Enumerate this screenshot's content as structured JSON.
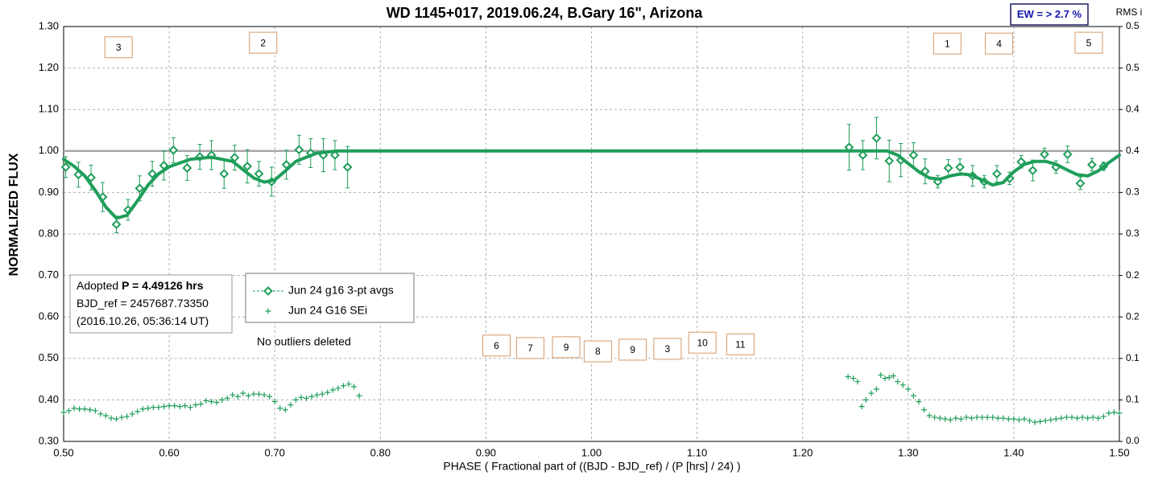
{
  "chart_data": {
    "type": "scatter",
    "title": "WD 1145+017, 2019.06.24, B.Gary 16\", Arizona",
    "x_label": "PHASE ( Fractional part of ((BJD - BJD_ref) / (P [hrs] / 24) )",
    "y_label": "NORMALIZED FLUX",
    "y2_label": "RMS i",
    "badge": "EW = > 2.7 %",
    "note": "No outliers deleted",
    "info_box": [
      [
        "Adopted",
        "P = 4.49126 hrs"
      ],
      [
        "BJD_ref = 2457687.73350"
      ],
      [
        "(2016.10.26, 05:36:14 UT)"
      ]
    ],
    "xlim": [
      0.5,
      1.5
    ],
    "ylim": [
      0.3,
      1.3
    ],
    "y2lim": [
      0,
      0.5
    ],
    "grid": true,
    "reference_line": 1,
    "xticks": [
      {
        "value": 0.5,
        "label": "0.50"
      },
      {
        "value": 0.6,
        "label": "0.60"
      },
      {
        "value": 0.7,
        "label": "0.70"
      },
      {
        "value": 0.8,
        "label": "0.80"
      },
      {
        "value": 0.9,
        "label": "0.90"
      },
      {
        "value": 1.0,
        "label": "1.00"
      },
      {
        "value": 1.1,
        "label": "1.10"
      },
      {
        "value": 1.2,
        "label": "1.20"
      },
      {
        "value": 1.3,
        "label": "1.30"
      },
      {
        "value": 1.4,
        "label": "1.40"
      },
      {
        "value": 1.5,
        "label": "1.50"
      }
    ],
    "yticks": [
      {
        "value": 0.3,
        "label": "0.30"
      },
      {
        "value": 0.4,
        "label": "0.40"
      },
      {
        "value": 0.5,
        "label": "0.50"
      },
      {
        "value": 0.6,
        "label": "0.60"
      },
      {
        "value": 0.7,
        "label": "0.70"
      },
      {
        "value": 0.8,
        "label": "0.80"
      },
      {
        "value": 0.9,
        "label": "0.90"
      },
      {
        "value": 1.0,
        "label": "1.00"
      },
      {
        "value": 1.1,
        "label": "1.10"
      },
      {
        "value": 1.2,
        "label": "1.20"
      },
      {
        "value": 1.3,
        "label": "1.30"
      }
    ],
    "y2ticks": [
      {
        "value": 0,
        "label": "0.0"
      },
      {
        "value": 0.05,
        "label": "0.1"
      },
      {
        "value": 0.1,
        "label": "0.1"
      },
      {
        "value": 0.15,
        "label": "0.2"
      },
      {
        "value": 0.2,
        "label": "0.2"
      },
      {
        "value": 0.25,
        "label": "0.3"
      },
      {
        "value": 0.3,
        "label": "0.3"
      },
      {
        "value": 0.35,
        "label": "0.4"
      },
      {
        "value": 0.4,
        "label": "0.4"
      },
      {
        "value": 0.45,
        "label": "0.5"
      },
      {
        "value": 0.5,
        "label": "0.5"
      }
    ],
    "annotations": [
      {
        "text": "3",
        "x": 0.552,
        "y": 1.25
      },
      {
        "text": "2",
        "x": 0.689,
        "y": 1.261
      },
      {
        "text": "1",
        "x": 1.337,
        "y": 1.259
      },
      {
        "text": "4",
        "x": 1.386,
        "y": 1.259
      },
      {
        "text": "5",
        "x": 1.471,
        "y": 1.261
      },
      {
        "text": "6",
        "x": 0.91,
        "y": 0.531
      },
      {
        "text": "7",
        "x": 0.942,
        "y": 0.525
      },
      {
        "text": "9",
        "x": 0.976,
        "y": 0.527
      },
      {
        "text": "8",
        "x": 1.006,
        "y": 0.517
      },
      {
        "text": "9",
        "x": 1.039,
        "y": 0.521
      },
      {
        "text": "3",
        "x": 1.072,
        "y": 0.523
      },
      {
        "text": "10",
        "x": 1.105,
        "y": 0.538
      },
      {
        "text": "11",
        "x": 1.141,
        "y": 0.534
      }
    ],
    "series": [
      {
        "name": "Jun 24 g16 3-pt avgs",
        "color": "#1f9e5a",
        "marker": "diamond",
        "x": [
          0.502,
          0.514,
          0.526,
          0.537,
          0.55,
          0.561,
          0.572,
          0.584,
          0.595,
          0.604,
          0.617,
          0.629,
          0.64,
          0.652,
          0.662,
          0.674,
          0.685,
          0.697,
          0.711,
          0.723,
          0.734,
          0.746,
          0.757,
          0.769,
          1.244,
          1.257,
          1.27,
          1.282,
          1.293,
          1.305,
          1.316,
          1.328,
          1.338,
          1.349,
          1.361,
          1.372,
          1.384,
          1.396,
          1.407,
          1.418,
          1.429,
          1.44,
          1.451,
          1.463,
          1.474,
          1.485
        ],
        "values": [
          0.961,
          0.943,
          0.936,
          0.889,
          0.823,
          0.858,
          0.91,
          0.945,
          0.965,
          1.002,
          0.959,
          0.986,
          0.99,
          0.945,
          0.984,
          0.963,
          0.945,
          0.926,
          0.967,
          1.003,
          0.995,
          0.99,
          0.99,
          0.961,
          1.009,
          0.99,
          1.031,
          0.976,
          0.978,
          0.99,
          0.951,
          0.926,
          0.959,
          0.961,
          0.94,
          0.926,
          0.945,
          0.934,
          0.974,
          0.953,
          0.992,
          0.961,
          0.992,
          0.922,
          0.967,
          0.963
        ],
        "errors": [
          0.025,
          0.03,
          0.03,
          0.035,
          0.02,
          0.025,
          0.03,
          0.03,
          0.035,
          0.03,
          0.03,
          0.03,
          0.035,
          0.035,
          0.03,
          0.04,
          0.03,
          0.035,
          0.035,
          0.035,
          0.035,
          0.04,
          0.035,
          0.05,
          0.055,
          0.035,
          0.05,
          0.05,
          0.04,
          0.03,
          0.03,
          0.015,
          0.02,
          0.02,
          0.025,
          0.015,
          0.02,
          0.015,
          0.015,
          0.025,
          0.015,
          0.015,
          0.02,
          0.015,
          0.015,
          0.01
        ]
      },
      {
        "name": "Jun 24 G16 SEi",
        "color": "#1f9e5a",
        "marker": "plus",
        "axis": "y2",
        "x": [
          0.5,
          0.505,
          0.51,
          0.515,
          0.52,
          0.525,
          0.53,
          0.535,
          0.54,
          0.545,
          0.55,
          0.555,
          0.56,
          0.565,
          0.57,
          0.575,
          0.58,
          0.585,
          0.59,
          0.595,
          0.6,
          0.605,
          0.61,
          0.615,
          0.62,
          0.625,
          0.63,
          0.635,
          0.64,
          0.645,
          0.65,
          0.655,
          0.66,
          0.665,
          0.67,
          0.675,
          0.68,
          0.685,
          0.69,
          0.695,
          0.7,
          0.705,
          0.71,
          0.715,
          0.72,
          0.725,
          0.73,
          0.735,
          0.74,
          0.745,
          0.75,
          0.755,
          0.76,
          0.765,
          0.77,
          0.775,
          0.78,
          1.243,
          1.248,
          1.252,
          1.256,
          1.26,
          1.265,
          1.27,
          1.274,
          1.278,
          1.282,
          1.286,
          1.29,
          1.295,
          1.3,
          1.305,
          1.31,
          1.315,
          1.32,
          1.325,
          1.33,
          1.335,
          1.34,
          1.345,
          1.35,
          1.355,
          1.36,
          1.365,
          1.37,
          1.375,
          1.38,
          1.385,
          1.39,
          1.395,
          1.4,
          1.405,
          1.41,
          1.415,
          1.42,
          1.425,
          1.43,
          1.435,
          1.44,
          1.445,
          1.45,
          1.455,
          1.46,
          1.465,
          1.47,
          1.475,
          1.48,
          1.485,
          1.49,
          1.495,
          1.5
        ],
        "values": [
          0.035,
          0.037,
          0.04,
          0.039,
          0.039,
          0.038,
          0.037,
          0.033,
          0.031,
          0.028,
          0.027,
          0.029,
          0.03,
          0.033,
          0.036,
          0.039,
          0.04,
          0.041,
          0.041,
          0.042,
          0.043,
          0.043,
          0.042,
          0.043,
          0.041,
          0.044,
          0.045,
          0.049,
          0.048,
          0.047,
          0.05,
          0.052,
          0.056,
          0.054,
          0.058,
          0.055,
          0.057,
          0.057,
          0.056,
          0.054,
          0.048,
          0.04,
          0.038,
          0.044,
          0.05,
          0.053,
          0.052,
          0.054,
          0.056,
          0.057,
          0.059,
          0.062,
          0.064,
          0.067,
          0.069,
          0.066,
          0.055,
          0.078,
          0.076,
          0.072,
          0.042,
          0.05,
          0.058,
          0.063,
          0.08,
          0.076,
          0.077,
          0.079,
          0.072,
          0.068,
          0.063,
          0.055,
          0.048,
          0.038,
          0.031,
          0.029,
          0.028,
          0.027,
          0.026,
          0.028,
          0.027,
          0.029,
          0.028,
          0.029,
          0.029,
          0.029,
          0.029,
          0.028,
          0.028,
          0.027,
          0.027,
          0.026,
          0.027,
          0.025,
          0.023,
          0.024,
          0.025,
          0.026,
          0.027,
          0.028,
          0.029,
          0.029,
          0.028,
          0.029,
          0.028,
          0.029,
          0.028,
          0.03,
          0.034,
          0.035,
          0.034
        ]
      },
      {
        "color": "#1f9e5a",
        "marker": "none",
        "x": [
          0.5,
          0.51,
          0.52,
          0.53,
          0.54,
          0.55,
          0.56,
          0.57,
          0.58,
          0.59,
          0.6,
          0.62,
          0.64,
          0.66,
          0.67,
          0.68,
          0.69,
          0.7,
          0.71,
          0.72,
          0.74,
          0.76,
          1.28,
          1.29,
          1.3,
          1.31,
          1.32,
          1.33,
          1.34,
          1.35,
          1.36,
          1.37,
          1.38,
          1.39,
          1.4,
          1.41,
          1.42,
          1.43,
          1.44,
          1.45,
          1.46,
          1.47,
          1.48,
          1.49,
          1.5
        ],
        "values": [
          0.98,
          0.963,
          0.94,
          0.905,
          0.865,
          0.838,
          0.845,
          0.88,
          0.918,
          0.945,
          0.962,
          0.98,
          0.985,
          0.975,
          0.955,
          0.935,
          0.925,
          0.93,
          0.952,
          0.975,
          0.995,
          1.0,
          1.0,
          0.99,
          0.97,
          0.95,
          0.935,
          0.932,
          0.94,
          0.945,
          0.942,
          0.93,
          0.918,
          0.924,
          0.95,
          0.968,
          0.975,
          0.975,
          0.968,
          0.955,
          0.943,
          0.94,
          0.952,
          0.972,
          0.99
        ]
      }
    ]
  }
}
